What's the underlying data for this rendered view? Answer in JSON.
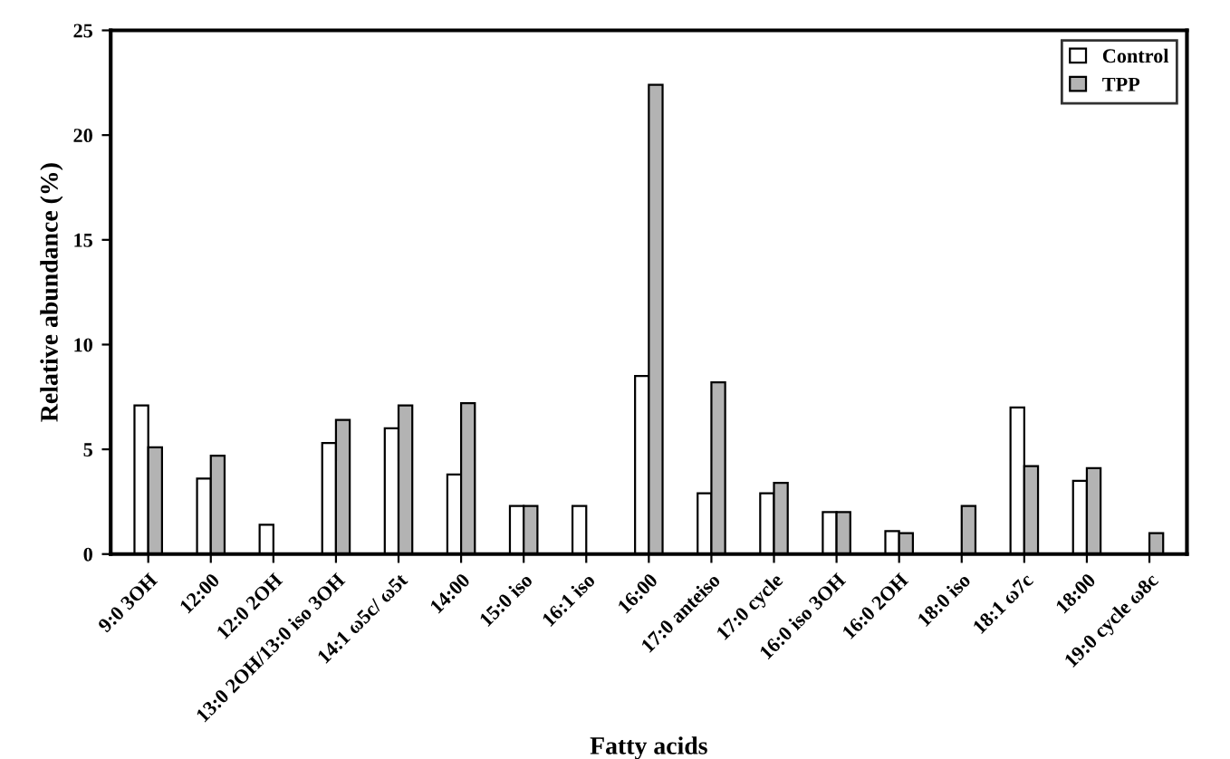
{
  "chart_data": {
    "type": "bar",
    "xlabel": "Fatty acids",
    "ylabel": "Relative abundance (%)",
    "categories": [
      "9:0 3OH",
      "12:00",
      "12:0 2OH",
      "13:0 2OH/13:0 iso 3OH",
      "14:1 ω5c/ ω5t",
      "14:00",
      "15:0 iso",
      "16:1 iso",
      "16:00",
      "17:0 anteiso",
      "17:0 cycle",
      "16:0 iso 3OH",
      "16:0 2OH",
      "18:0 iso",
      "18:1 ω7c",
      "18:00",
      "19:0 cycle ω8c"
    ],
    "series": [
      {
        "name": "Control",
        "color": "#ffffff",
        "values": [
          7.1,
          3.6,
          1.4,
          5.3,
          6.0,
          3.8,
          2.3,
          2.3,
          8.5,
          2.9,
          2.9,
          2.0,
          1.1,
          null,
          7.0,
          3.5,
          null
        ]
      },
      {
        "name": "TPP",
        "color": "#b3b3b3",
        "values": [
          5.1,
          4.7,
          null,
          6.4,
          7.1,
          7.2,
          2.3,
          null,
          22.4,
          8.2,
          3.4,
          2.0,
          1.0,
          2.3,
          4.2,
          4.1,
          1.0
        ]
      }
    ],
    "ylim": [
      0,
      25
    ],
    "yticks": [
      0,
      5,
      10,
      15,
      20,
      25
    ],
    "grid": false,
    "legend": "top right"
  }
}
